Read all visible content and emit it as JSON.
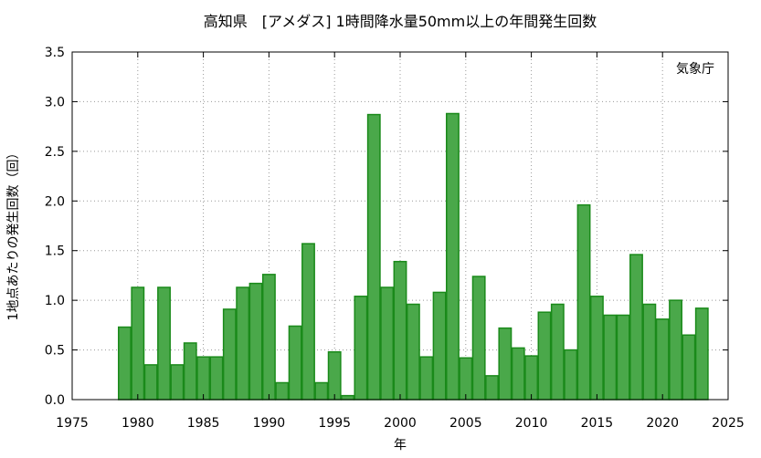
{
  "chart_data": {
    "type": "bar",
    "title": "高知県　[アメダス] 1時間降水量50mm以上の年間発生回数",
    "xlabel": "年",
    "ylabel": "1地点あたりの発生回数（回）",
    "source_note": "気象庁",
    "xlim": [
      1975,
      2025
    ],
    "ylim": [
      0,
      3.5
    ],
    "x_ticks": [
      1975,
      1980,
      1985,
      1990,
      1995,
      2000,
      2005,
      2010,
      2015,
      2020,
      2025
    ],
    "x_tick_labels": [
      "1975",
      "1980",
      "1985",
      "1990",
      "1995",
      "2000",
      "2005",
      "2010",
      "2015",
      "2020",
      "2025"
    ],
    "y_ticks": [
      0,
      0.5,
      1.0,
      1.5,
      2.0,
      2.5,
      3.0,
      3.5
    ],
    "y_tick_labels": [
      "0.0",
      "0.5",
      "1.0",
      "1.5",
      "2.0",
      "2.5",
      "3.0",
      "3.5"
    ],
    "grid": true,
    "colors": {
      "bar_fill": "#4aa84a",
      "bar_stroke": "#1a8a1a",
      "grid": "#999999",
      "axis": "#000000"
    },
    "categories": [
      1979,
      1980,
      1981,
      1982,
      1983,
      1984,
      1985,
      1986,
      1987,
      1988,
      1989,
      1990,
      1991,
      1992,
      1993,
      1994,
      1995,
      1996,
      1997,
      1998,
      1999,
      2000,
      2001,
      2002,
      2003,
      2004,
      2005,
      2006,
      2007,
      2008,
      2009,
      2010,
      2011,
      2012,
      2013,
      2014,
      2015,
      2016,
      2017,
      2018,
      2019,
      2020,
      2021,
      2022,
      2023
    ],
    "values": [
      0.73,
      1.13,
      0.35,
      1.13,
      0.35,
      0.57,
      0.43,
      0.43,
      0.91,
      1.13,
      1.17,
      1.26,
      0.17,
      0.74,
      1.57,
      0.17,
      0.48,
      0.04,
      1.04,
      2.87,
      1.13,
      1.39,
      0.96,
      0.43,
      1.08,
      2.88,
      0.42,
      1.24,
      0.24,
      0.72,
      0.52,
      0.44,
      0.88,
      0.96,
      0.5,
      1.96,
      1.04,
      0.85,
      0.85,
      1.46,
      0.96,
      0.81,
      1.0,
      0.65,
      0.92
    ]
  }
}
